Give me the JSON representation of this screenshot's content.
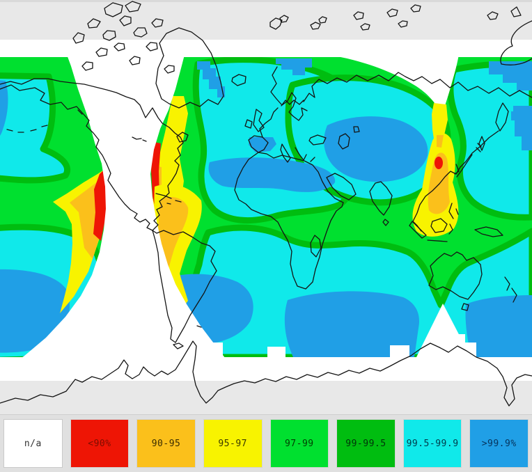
{
  "palette": {
    "na_white": "#ffffff",
    "red": "#ee1505",
    "orange": "#fbc01b",
    "yellow": "#f8f300",
    "green": "#00e02f",
    "green_dark": "#00bd10",
    "cyan": "#10e9ea",
    "blue": "#209fe6",
    "polar_gray": "#e8e8e8",
    "legend_bg": "#e0e0e0",
    "coastline": "#141414"
  },
  "legend": {
    "items": [
      {
        "label": "n/a",
        "color": "na_white",
        "text_color": "#333333"
      },
      {
        "label": "<90%",
        "color": "red",
        "text_color": "#7c0d00"
      },
      {
        "label": "90-95",
        "color": "orange",
        "text_color": "#3a2c00"
      },
      {
        "label": "95-97",
        "color": "yellow",
        "text_color": "#3a3a00"
      },
      {
        "label": "97-99",
        "color": "green",
        "text_color": "#003d00"
      },
      {
        "label": "99-99.5",
        "color": "green_dark",
        "text_color": "#00320a"
      },
      {
        "label": "99.5-99.9",
        "color": "cyan",
        "text_color": "#003a4a"
      },
      {
        "label": ">99.9%",
        "color": "blue",
        "text_color": "#06335c"
      }
    ]
  },
  "map": {
    "kind": "world availability map",
    "regions": [
      {
        "name": "polar-no-data-bands",
        "color": "polar_gray"
      },
      {
        "name": "no-coverage-wedge-americas",
        "color": "na_white"
      },
      {
        "name": "no-coverage-wedge-siberia",
        "color": "na_white"
      },
      {
        "name": "no-coverage-wedge-south-of-australia",
        "color": "na_white"
      },
      {
        "name": "low-availability-fringe",
        "colors": [
          "red",
          "orange",
          "yellow"
        ]
      },
      {
        "name": "base-availability-97-99",
        "color": "green"
      },
      {
        "name": "high-availability-oceans-99.5-99.9",
        "color": "cyan"
      },
      {
        "name": "highest-availability-cores-over-99.9",
        "color": "blue"
      },
      {
        "name": "east-asia-low-availability-patch",
        "colors": [
          "yellow",
          "orange",
          "red"
        ]
      },
      {
        "name": "andes-low-availability-patch",
        "colors": [
          "yellow",
          "orange"
        ]
      }
    ]
  }
}
